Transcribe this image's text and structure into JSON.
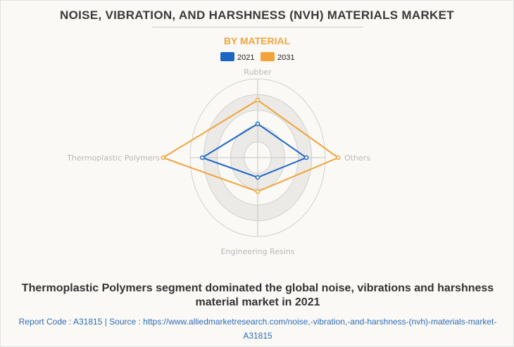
{
  "header": {
    "title": "NOISE, VIBRATION, AND HARSHNESS (NVH) MATERIALS MARKET",
    "subtitle": "BY MATERIAL"
  },
  "chart_data": {
    "type": "radar",
    "title": "BY MATERIAL",
    "axes": [
      "Rubber",
      "Others",
      "Engineering Resins",
      "Thermoplastic Polymers"
    ],
    "scale": {
      "min": 0,
      "max": 1,
      "rings": 5
    },
    "series": [
      {
        "name": "2021",
        "color": "#1f66c4",
        "values": [
          0.43,
          0.72,
          0.25,
          0.82
        ]
      },
      {
        "name": "2031",
        "color": "#f2a33a",
        "values": [
          0.73,
          1.19,
          0.43,
          1.4
        ]
      }
    ],
    "legend": "top-center"
  },
  "footer": {
    "caption": "Thermoplastic Polymers segment dominated the global noise, vibrations and harshness material market in 2021",
    "source": "Report Code : A31815  |  Source : https://www.alliedmarketresearch.com/noise,-vibration,-and-harshness-(nvh)-materials-market-A31815"
  }
}
